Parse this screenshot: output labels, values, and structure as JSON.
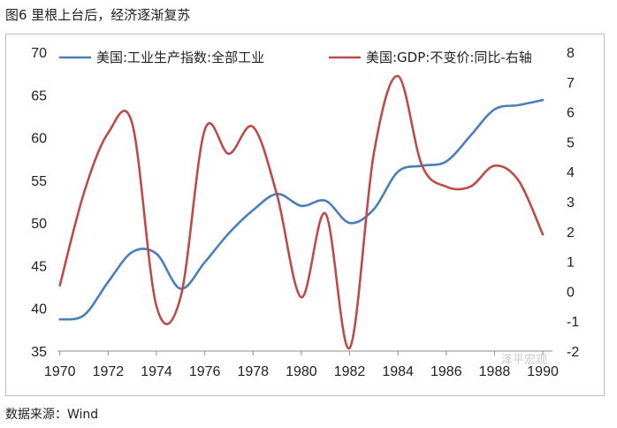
{
  "figure_title": "图6 里根上台后，经济逐渐复苏",
  "source_note": "数据来源：Wind",
  "watermark": "泽平宏观",
  "chart_data": {
    "type": "line",
    "title": "",
    "xlabel": "",
    "ylabel_left": "",
    "ylabel_right": "",
    "x_ticks": [
      1970,
      1972,
      1974,
      1976,
      1978,
      1980,
      1982,
      1984,
      1986,
      1988,
      1990
    ],
    "xlim": [
      1969.9,
      1990.4
    ],
    "y_left": {
      "lim": [
        35,
        70
      ],
      "ticks": [
        35,
        40,
        45,
        50,
        55,
        60,
        65,
        70
      ]
    },
    "y_right": {
      "lim": [
        -2,
        8
      ],
      "ticks": [
        -2,
        -1,
        0,
        1,
        2,
        3,
        4,
        5,
        6,
        7,
        8
      ]
    },
    "legend_position": "top",
    "series": [
      {
        "name": "美国:工业生产指数:全部工业",
        "axis": "left",
        "color": "#4a7ebb",
        "x": [
          1970,
          1971,
          1972,
          1973,
          1974,
          1975,
          1976,
          1977,
          1978,
          1979,
          1980,
          1981,
          1982,
          1983,
          1984,
          1985,
          1986,
          1987,
          1988,
          1989,
          1990
        ],
        "y": [
          38.7,
          39.2,
          43.1,
          46.6,
          46.4,
          42.3,
          45.4,
          48.8,
          51.5,
          53.4,
          52.0,
          52.6,
          50.0,
          51.6,
          56.0,
          56.7,
          57.2,
          60.2,
          63.3,
          63.8,
          64.4
        ]
      },
      {
        "name": "美国:GDP:不变价:同比-右轴",
        "axis": "right",
        "color": "#be4b48",
        "x": [
          1970,
          1971,
          1972,
          1973,
          1974,
          1975,
          1976,
          1977,
          1978,
          1979,
          1980,
          1981,
          1982,
          1983,
          1984,
          1985,
          1986,
          1987,
          1988,
          1989,
          1990
        ],
        "y": [
          0.2,
          3.3,
          5.3,
          5.6,
          -0.5,
          -0.2,
          5.4,
          4.6,
          5.5,
          3.2,
          -0.2,
          2.6,
          -1.9,
          4.6,
          7.2,
          4.2,
          3.5,
          3.5,
          4.2,
          3.7,
          1.9
        ]
      }
    ]
  }
}
